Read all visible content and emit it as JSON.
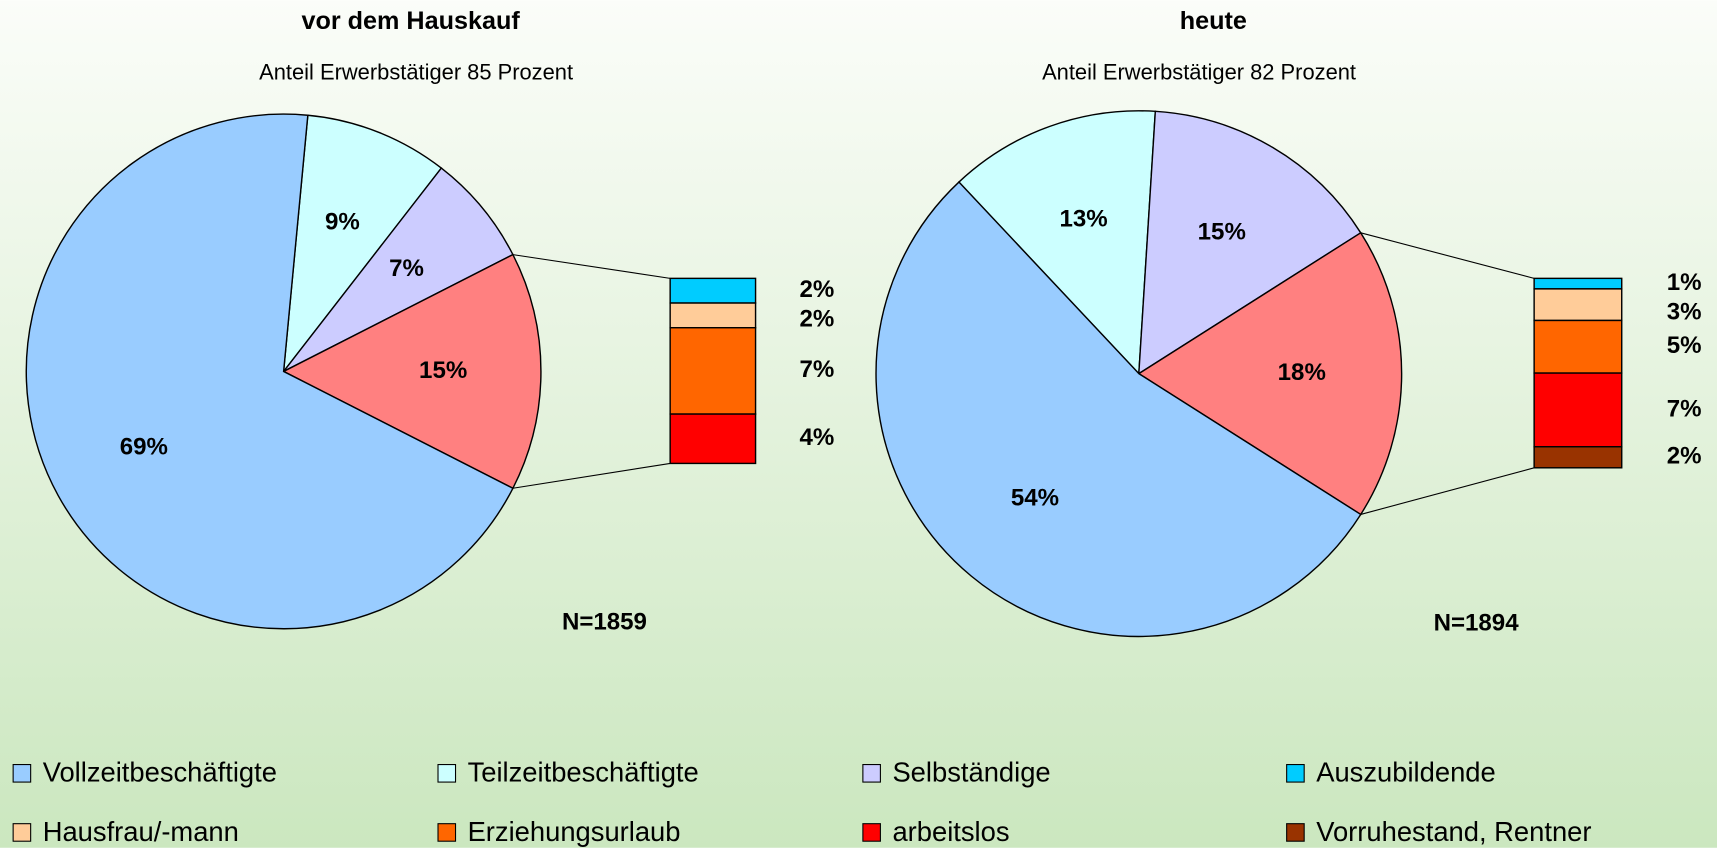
{
  "chart_data": [
    {
      "type": "pie",
      "title": "vor dem Hauskauf",
      "subtitle": "Anteil Erwerbstätiger 85 Prozent",
      "note": "N=1859",
      "categories": [
        "Vollzeitbeschäftigte",
        "Teilzeitbeschäftigte",
        "Selbständige",
        null
      ],
      "values": [
        69,
        9,
        7,
        15
      ],
      "value_labels": [
        "69%",
        "9%",
        "7%",
        "15%"
      ],
      "colors": [
        "#99ccff",
        "#ccffff",
        "#ccccff",
        "#ff8080"
      ],
      "bar": {
        "categories": [
          "Auszubildende",
          "Hausfrau/-mann",
          "Erziehungsurlaub",
          "arbeitslos"
        ],
        "values": [
          2,
          2,
          7,
          4
        ],
        "value_labels": [
          "2%",
          "2%",
          "7%",
          "4%"
        ],
        "colors": [
          "#00ccff",
          "#ffcc99",
          "#ff6600",
          "#ff0000"
        ]
      }
    },
    {
      "type": "pie",
      "title": "heute",
      "subtitle": "Anteil Erwerbstätiger 82 Prozent",
      "note": "N=1894",
      "categories": [
        "Vollzeitbeschäftigte",
        "Teilzeitbeschäftigte",
        "Selbständige",
        null
      ],
      "values": [
        54,
        13,
        15,
        18
      ],
      "value_labels": [
        "54%",
        "13%",
        "15%",
        "18%"
      ],
      "colors": [
        "#99ccff",
        "#ccffff",
        "#ccccff",
        "#ff8080"
      ],
      "bar": {
        "categories": [
          "Auszubildende",
          "Hausfrau/-mann",
          "Erziehungsurlaub",
          "arbeitslos",
          "Vorruhestand, Rentner"
        ],
        "values": [
          1,
          3,
          5,
          7,
          2
        ],
        "value_labels": [
          "1%",
          "3%",
          "5%",
          "7%",
          "2%"
        ],
        "colors": [
          "#00ccff",
          "#ffcc99",
          "#ff6600",
          "#ff0000",
          "#993300"
        ]
      }
    }
  ]
}
